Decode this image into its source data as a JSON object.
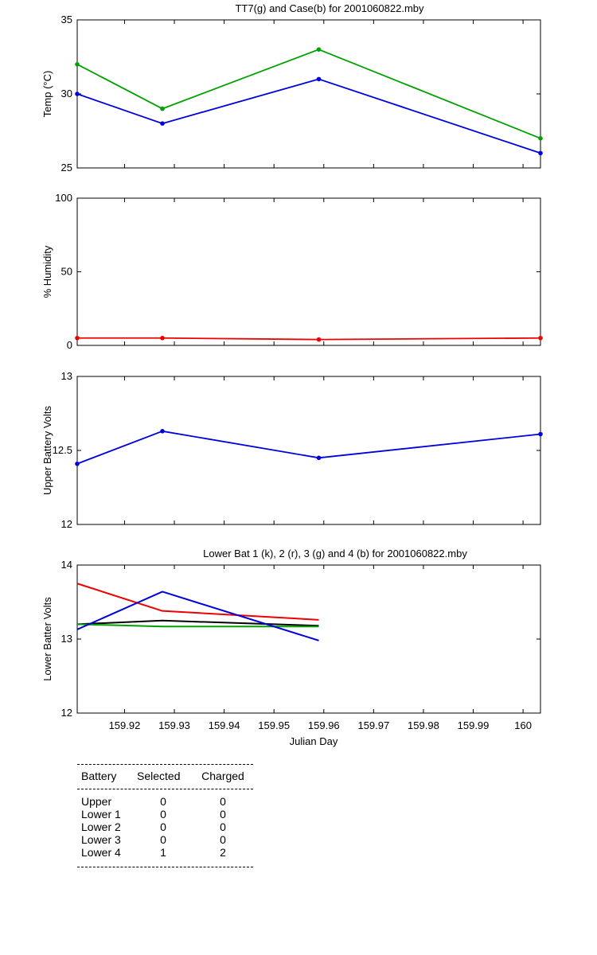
{
  "chart_data": [
    {
      "type": "line",
      "title": "TT7(g) and Case(b) for 2001060822.mby",
      "ylabel": "Temp  (°C)",
      "xlabel": "",
      "xlim": [
        159.9105,
        160.0035
      ],
      "ylim": [
        25,
        35
      ],
      "yticks": [
        25,
        30,
        35
      ],
      "series": [
        {
          "color": "#00a000",
          "x": [
            159.9105,
            159.9276,
            159.959,
            160.0035
          ],
          "y": [
            32,
            29,
            33,
            27
          ]
        },
        {
          "color": "#0000dd",
          "x": [
            159.9105,
            159.9276,
            159.959,
            160.0035
          ],
          "y": [
            30,
            28,
            31,
            26
          ]
        }
      ]
    },
    {
      "type": "line",
      "title": "",
      "ylabel": "% Humidity",
      "xlabel": "",
      "xlim": [
        159.9105,
        160.0035
      ],
      "ylim": [
        0,
        100
      ],
      "yticks": [
        0,
        50,
        100
      ],
      "series": [
        {
          "color": "#ee0000",
          "x": [
            159.9105,
            159.9276,
            159.959,
            160.0035
          ],
          "y": [
            5,
            5,
            4,
            5
          ]
        }
      ]
    },
    {
      "type": "line",
      "title": "",
      "ylabel": "Upper Battery Volts",
      "xlabel": "",
      "xlim": [
        159.9105,
        160.0035
      ],
      "ylim": [
        12,
        13
      ],
      "yticks": [
        12,
        12.5,
        13
      ],
      "series": [
        {
          "color": "#0000dd",
          "x": [
            159.9105,
            159.9276,
            159.959,
            160.0035
          ],
          "y": [
            12.41,
            12.63,
            12.45,
            12.61
          ]
        }
      ]
    },
    {
      "type": "line",
      "title": "Lower Bat 1 (k), 2 (r), 3 (g) and 4 (b) for 2001060822.mby",
      "ylabel": "Lower Batter Volts",
      "xlabel": "Julian Day",
      "xlim": [
        159.9105,
        160.0035
      ],
      "ylim": [
        12,
        14
      ],
      "yticks": [
        12,
        13,
        14
      ],
      "xticks": [
        159.92,
        159.93,
        159.94,
        159.95,
        159.96,
        159.97,
        159.98,
        159.99,
        160
      ],
      "xtick_labels": [
        "159.92",
        "159.93",
        "159.94",
        "159.95",
        "159.96",
        "159.97",
        "159.98",
        "159.99",
        "160"
      ],
      "series": [
        {
          "color": "#000000",
          "x": [
            159.9105,
            159.9276,
            159.959
          ],
          "y": [
            13.2,
            13.25,
            13.18
          ]
        },
        {
          "color": "#ee0000",
          "x": [
            159.9105,
            159.9276,
            159.959
          ],
          "y": [
            13.75,
            13.38,
            13.26
          ]
        },
        {
          "color": "#00a000",
          "x": [
            159.9105,
            159.9276,
            159.959
          ],
          "y": [
            13.2,
            13.17,
            13.17
          ]
        },
        {
          "color": "#0000dd",
          "x": [
            159.9105,
            159.9276,
            159.959
          ],
          "y": [
            13.13,
            13.64,
            12.98
          ]
        }
      ]
    }
  ],
  "battery_table": {
    "headers": [
      "Battery",
      "Selected",
      "Charged"
    ],
    "rows": [
      [
        "Upper",
        "0",
        "0"
      ],
      [
        "Lower 1",
        "0",
        "0"
      ],
      [
        "Lower 2",
        "0",
        "0"
      ],
      [
        "Lower 3",
        "0",
        "0"
      ],
      [
        "Lower 4",
        "1",
        "2"
      ]
    ]
  }
}
